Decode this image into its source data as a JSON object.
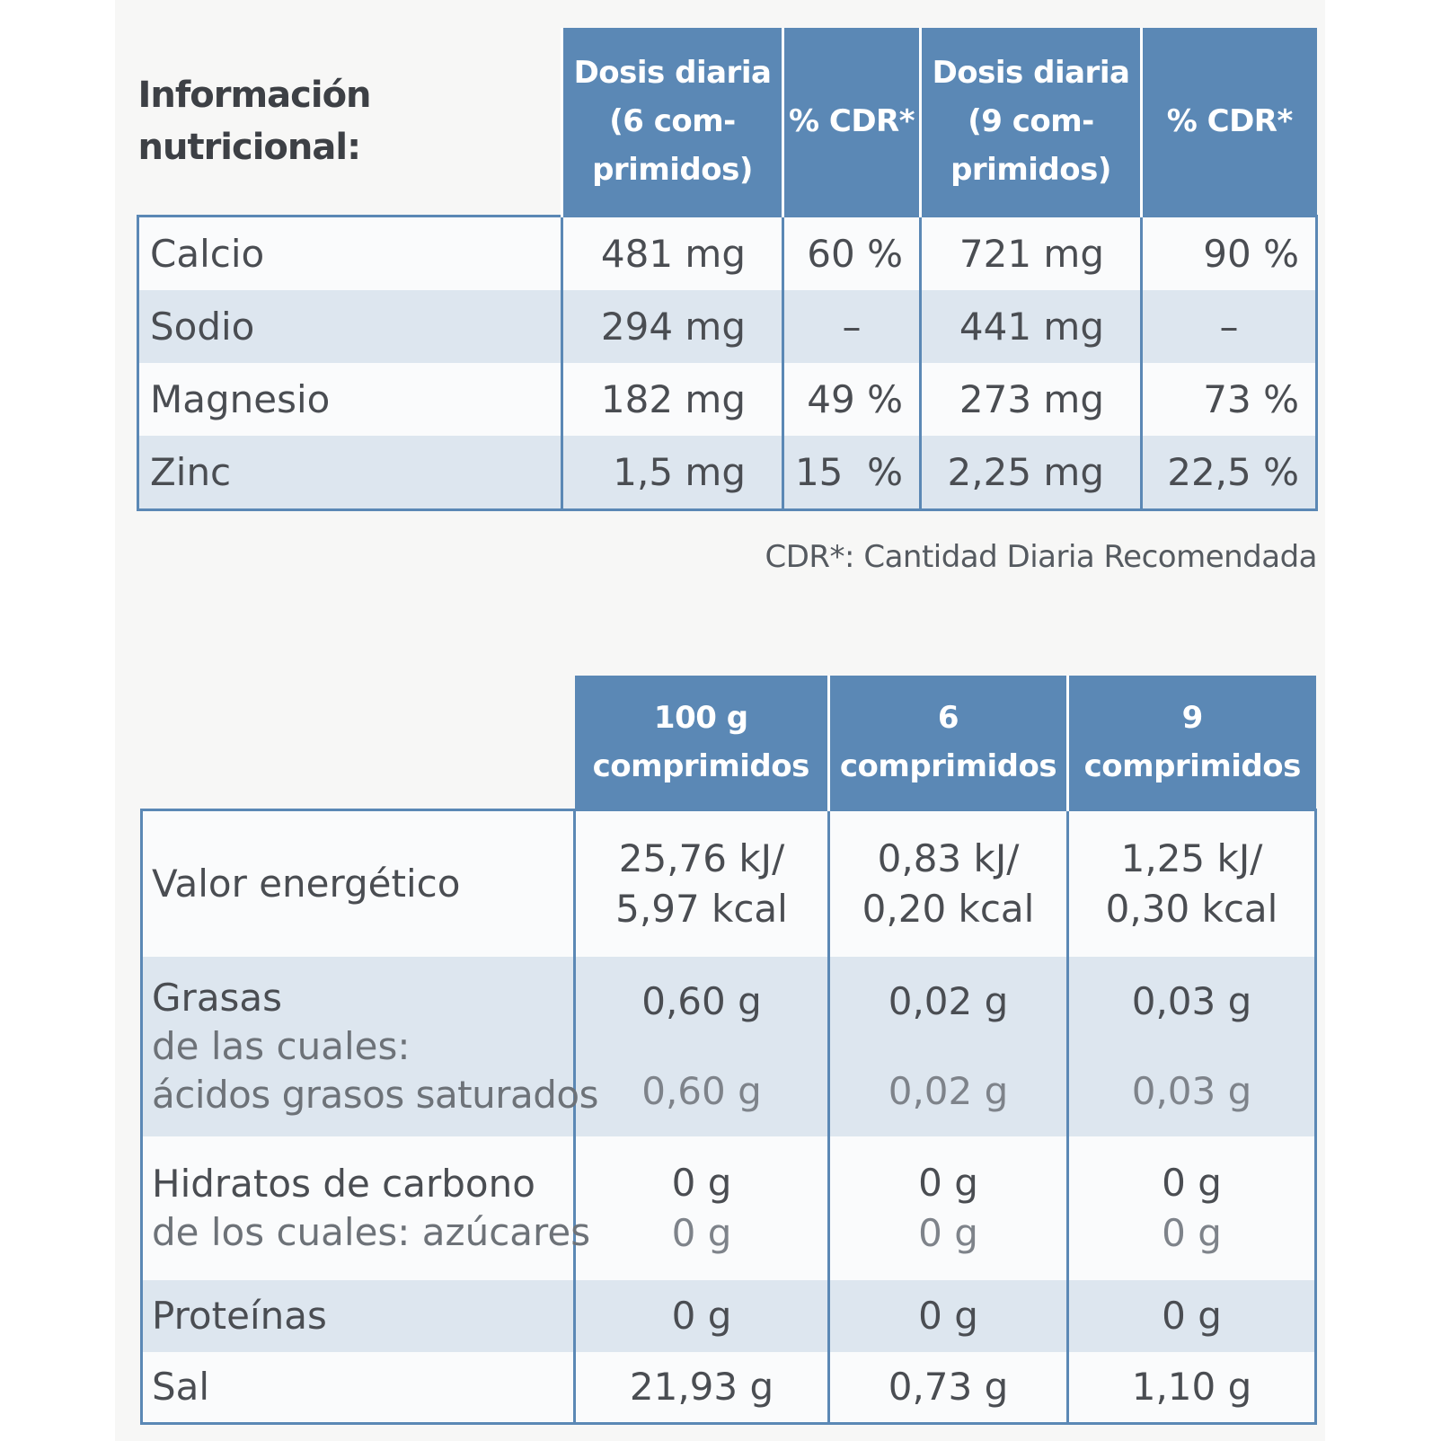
{
  "table1": {
    "title": "Información nutricional:",
    "columns": [
      "Dosis diaria (6 com-primidos)",
      "% CDR*",
      "Dosis diaria (9 com-primidos)",
      "% CDR*"
    ],
    "columns_lines": [
      [
        "Dosis diaria",
        "(6 com-",
        "primidos)"
      ],
      [
        "% CDR*"
      ],
      [
        "Dosis diaria",
        "(9 com-",
        "primidos)"
      ],
      [
        "% CDR*"
      ]
    ],
    "rows": [
      {
        "name": "Calcio",
        "d6": "481 mg",
        "p6": "60 %",
        "d9": "721 mg",
        "p9": "90 %"
      },
      {
        "name": "Sodio",
        "d6": "294 mg",
        "p6": "–",
        "d9": "441 mg",
        "p9": "–"
      },
      {
        "name": "Magnesio",
        "d6": "182 mg",
        "p6": "49 %",
        "d9": "273 mg",
        "p9": "73 %"
      },
      {
        "name": "Zinc",
        "d6": "1,5 mg",
        "p6": "15  %",
        "d9": "2,25 mg",
        "p9": "22,5 %"
      }
    ]
  },
  "footnote": "CDR*: Cantidad Diaria Recomendada",
  "table2": {
    "columns_lines": [
      [
        "100 g",
        "comprimidos"
      ],
      [
        "6",
        "comprimidos"
      ],
      [
        "9",
        "comprimidos"
      ]
    ],
    "rows": {
      "energia": {
        "name": "Valor energético",
        "c100": [
          "25,76 kJ/",
          "5,97 kcal"
        ],
        "c6": [
          "0,83 kJ/",
          "0,20 kcal"
        ],
        "c9": [
          "1,25 kJ/",
          "0,30 kcal"
        ]
      },
      "grasas": {
        "name": "Grasas",
        "sub1": "de las cuales:",
        "sub2": "ácidos grasos saturados",
        "c100": "0,60 g",
        "c100s": "0,60 g",
        "c6": "0,02 g",
        "c6s": "0,02 g",
        "c9": "0,03 g",
        "c9s": "0,03 g"
      },
      "hidratos": {
        "name": "Hidratos de carbono",
        "sub": "de los cuales: azúcares",
        "c100": "0 g",
        "c100s": "0 g",
        "c6": "0 g",
        "c6s": "0 g",
        "c9": "0 g",
        "c9s": "0 g"
      },
      "proteinas": {
        "name": "Proteínas",
        "c100": "0 g",
        "c6": "0 g",
        "c9": "0 g"
      },
      "sal": {
        "name": "Sal",
        "c100": "21,93 g",
        "c6": "0,73 g",
        "c9": "1,10 g"
      }
    }
  },
  "colors": {
    "header_blue": "#5b88b5",
    "band_light_blue": "#dde6ef"
  }
}
